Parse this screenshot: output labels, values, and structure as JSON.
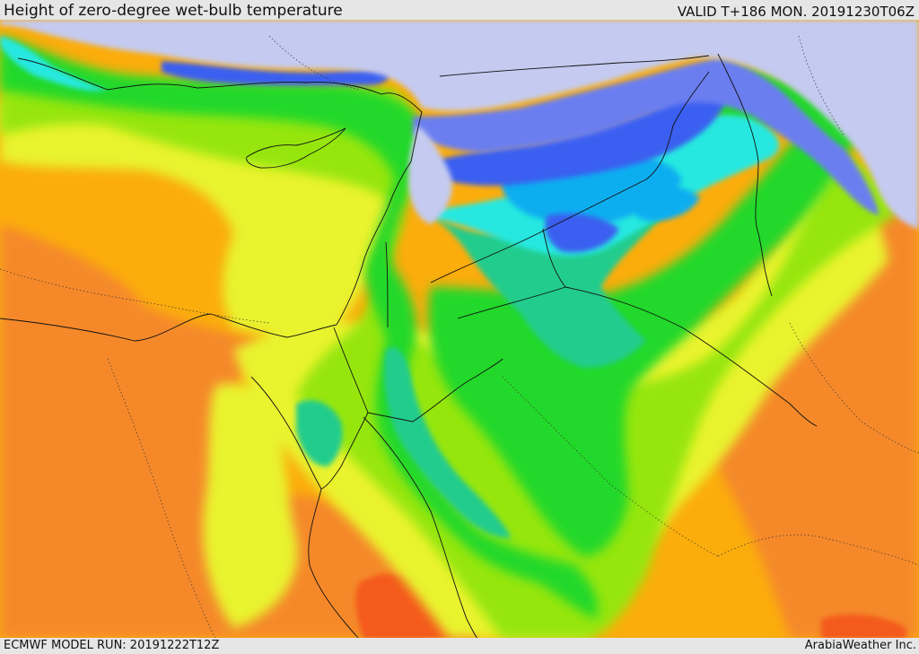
{
  "header": {
    "title": "Height of zero-degree wet-bulb temperature",
    "valid": "VALID T+186 MON. 20191230T06Z"
  },
  "footer": {
    "model_run": "ECMWF MODEL RUN: 20191222T12Z",
    "brand": "ArabiaWeather Inc."
  },
  "colors": {
    "red": "#f45a1f",
    "dark_orange": "#f5892c",
    "orange": "#fbad0c",
    "yellow": "#e9f32f",
    "lime": "#96e60a",
    "green": "#21d82a",
    "teal": "#24cc8d",
    "cyan": "#25e8e0",
    "sky": "#11aef0",
    "blue": "#3a5ef0",
    "periwinkle": "#6a7ef0",
    "lavender": "#c4caf0"
  }
}
